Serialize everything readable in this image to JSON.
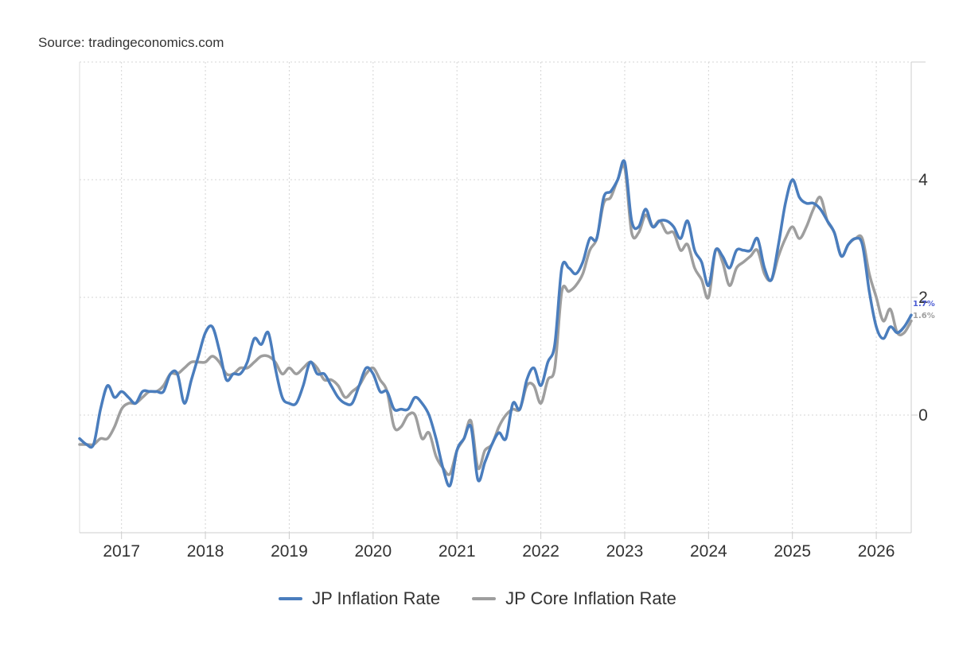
{
  "source": "Source: tradingeconomics.com",
  "chart_data": {
    "type": "line",
    "title": "",
    "xlabel": "",
    "ylabel": "",
    "x_ticks": [
      "2017",
      "2018",
      "2019",
      "2020",
      "2021",
      "2022",
      "2023",
      "2024",
      "2025",
      "2026"
    ],
    "y_ticks": [
      0,
      2,
      4
    ],
    "xlim": [
      "2016-07",
      "2026-06"
    ],
    "ylim": [
      -2,
      6
    ],
    "grid": true,
    "legend_position": "bottom-center",
    "x": [
      "2016-07",
      "2016-08",
      "2016-09",
      "2016-10",
      "2016-11",
      "2016-12",
      "2017-01",
      "2017-02",
      "2017-03",
      "2017-04",
      "2017-05",
      "2017-06",
      "2017-07",
      "2017-08",
      "2017-09",
      "2017-10",
      "2017-11",
      "2017-12",
      "2018-01",
      "2018-02",
      "2018-03",
      "2018-04",
      "2018-05",
      "2018-06",
      "2018-07",
      "2018-08",
      "2018-09",
      "2018-10",
      "2018-11",
      "2018-12",
      "2019-01",
      "2019-02",
      "2019-03",
      "2019-04",
      "2019-05",
      "2019-06",
      "2019-07",
      "2019-08",
      "2019-09",
      "2019-10",
      "2019-11",
      "2019-12",
      "2020-01",
      "2020-02",
      "2020-03",
      "2020-04",
      "2020-05",
      "2020-06",
      "2020-07",
      "2020-08",
      "2020-09",
      "2020-10",
      "2020-11",
      "2020-12",
      "2021-01",
      "2021-02",
      "2021-03",
      "2021-04",
      "2021-05",
      "2021-06",
      "2021-07",
      "2021-08",
      "2021-09",
      "2021-10",
      "2021-11",
      "2021-12",
      "2022-01",
      "2022-02",
      "2022-03",
      "2022-04",
      "2022-05",
      "2022-06",
      "2022-07",
      "2022-08",
      "2022-09",
      "2022-10",
      "2022-11",
      "2022-12",
      "2023-01",
      "2023-02",
      "2023-03",
      "2023-04",
      "2023-05",
      "2023-06",
      "2023-07",
      "2023-08",
      "2023-09",
      "2023-10",
      "2023-11",
      "2023-12",
      "2024-01",
      "2024-02",
      "2024-03",
      "2024-04",
      "2024-05",
      "2024-06",
      "2024-07",
      "2024-08",
      "2024-09",
      "2024-10",
      "2024-11",
      "2024-12",
      "2025-01",
      "2025-02",
      "2025-03",
      "2025-04",
      "2025-05",
      "2025-06",
      "2025-07",
      "2025-08",
      "2025-09",
      "2025-10",
      "2025-11",
      "2025-12",
      "2026-01",
      "2026-02",
      "2026-03",
      "2026-04",
      "2026-05",
      "2026-06"
    ],
    "series": [
      {
        "name": "JP Inflation Rate",
        "color": "#4a7dbd",
        "values": [
          -0.4,
          -0.5,
          -0.5,
          0.1,
          0.5,
          0.3,
          0.4,
          0.3,
          0.2,
          0.4,
          0.4,
          0.4,
          0.4,
          0.7,
          0.7,
          0.2,
          0.6,
          1.0,
          1.4,
          1.5,
          1.1,
          0.6,
          0.7,
          0.7,
          0.9,
          1.3,
          1.2,
          1.4,
          0.8,
          0.3,
          0.2,
          0.2,
          0.5,
          0.9,
          0.7,
          0.7,
          0.5,
          0.3,
          0.2,
          0.2,
          0.5,
          0.8,
          0.7,
          0.4,
          0.4,
          0.1,
          0.1,
          0.1,
          0.3,
          0.2,
          0.0,
          -0.4,
          -0.9,
          -1.2,
          -0.6,
          -0.4,
          -0.2,
          -1.1,
          -0.8,
          -0.5,
          -0.3,
          -0.4,
          0.2,
          0.1,
          0.6,
          0.8,
          0.5,
          0.9,
          1.2,
          2.5,
          2.5,
          2.4,
          2.6,
          3.0,
          3.0,
          3.7,
          3.8,
          4.0,
          4.3,
          3.3,
          3.2,
          3.5,
          3.2,
          3.3,
          3.3,
          3.2,
          3.0,
          3.3,
          2.8,
          2.6,
          2.2,
          2.8,
          2.7,
          2.5,
          2.8,
          2.8,
          2.8,
          3.0,
          2.5,
          2.3,
          2.9,
          3.6,
          4.0,
          3.7,
          3.6,
          3.6,
          3.5,
          3.3,
          3.1,
          2.7,
          2.9,
          3.0,
          2.9,
          2.1,
          1.5,
          1.3,
          1.5,
          1.4,
          1.5,
          1.7
        ]
      },
      {
        "name": "JP Core Inflation Rate",
        "color": "#9e9e9e",
        "values": [
          -0.5,
          -0.5,
          -0.5,
          -0.4,
          -0.4,
          -0.2,
          0.1,
          0.2,
          0.2,
          0.3,
          0.4,
          0.4,
          0.5,
          0.7,
          0.7,
          0.8,
          0.9,
          0.9,
          0.9,
          1.0,
          0.9,
          0.7,
          0.7,
          0.8,
          0.8,
          0.9,
          1.0,
          1.0,
          0.9,
          0.7,
          0.8,
          0.7,
          0.8,
          0.9,
          0.8,
          0.6,
          0.6,
          0.5,
          0.3,
          0.4,
          0.5,
          0.7,
          0.8,
          0.6,
          0.4,
          -0.2,
          -0.2,
          0.0,
          0.0,
          -0.4,
          -0.3,
          -0.7,
          -0.9,
          -1.0,
          -0.6,
          -0.4,
          -0.1,
          -0.9,
          -0.6,
          -0.5,
          -0.2,
          0.0,
          0.1,
          0.1,
          0.5,
          0.5,
          0.2,
          0.6,
          0.8,
          2.1,
          2.1,
          2.2,
          2.4,
          2.8,
          3.0,
          3.6,
          3.7,
          4.0,
          4.2,
          3.1,
          3.1,
          3.4,
          3.2,
          3.3,
          3.1,
          3.1,
          2.8,
          2.9,
          2.5,
          2.3,
          2.0,
          2.8,
          2.6,
          2.2,
          2.5,
          2.6,
          2.7,
          2.8,
          2.4,
          2.3,
          2.7,
          3.0,
          3.2,
          3.0,
          3.2,
          3.5,
          3.7,
          3.3,
          3.1,
          2.7,
          2.9,
          3.0,
          3.0,
          2.4,
          2.0,
          1.6,
          1.8,
          1.4,
          1.4,
          1.6
        ]
      }
    ],
    "end_labels": [
      "1.7%",
      "1.6%"
    ]
  }
}
